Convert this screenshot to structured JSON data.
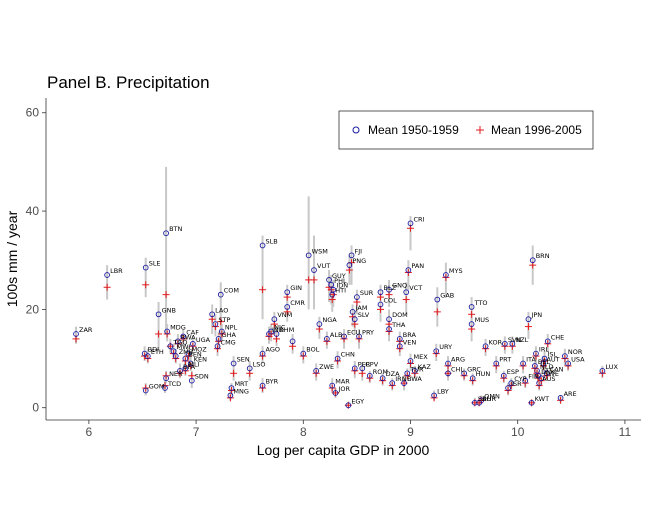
{
  "chart_data": {
    "type": "scatter",
    "title": "Panel B. Precipitation",
    "xlabel": "Log per capita GDP in 2000",
    "ylabel": "100s mm / year",
    "xlim": [
      5.6,
      11.15
    ],
    "ylim": [
      -2.5,
      63
    ],
    "xticks": [
      "6",
      "7",
      "8",
      "9",
      "10",
      "11"
    ],
    "yticks": [
      "0",
      "20",
      "40",
      "60"
    ],
    "grid": false,
    "legend_position": "top-right",
    "colors": {
      "mean_1950": "#1a1aa0",
      "mean_1996": "#e41a1c",
      "range": "#c8c8c8"
    },
    "legend": {
      "mean_1950": "Mean 1950-1959",
      "mean_1996": "Mean 1996-2005"
    },
    "series_names": [
      "Mean 1950-1959",
      "Mean 1996-2005"
    ],
    "points": [
      {
        "label": "ZAR",
        "x": 5.88,
        "y1": 15.0,
        "y2": 14.0,
        "lo": 13.0,
        "hi": 16.5
      },
      {
        "label": "LBR",
        "x": 6.17,
        "y1": 27.0,
        "y2": 24.5,
        "lo": 22.0,
        "hi": 29.0
      },
      {
        "label": "SLE",
        "x": 6.53,
        "y1": 28.5,
        "y2": 25.0,
        "lo": 22.5,
        "hi": 30.5
      },
      {
        "label": "BTN",
        "x": 6.72,
        "y1": 35.5,
        "y2": 23.0,
        "lo": 15.0,
        "hi": 49.0
      },
      {
        "label": "GNB",
        "x": 6.65,
        "y1": 19.0,
        "y2": 15.0,
        "lo": 12.0,
        "hi": 21.5
      },
      {
        "label": "MDG",
        "x": 6.73,
        "y1": 15.5,
        "y2": 15.0,
        "lo": 13.5,
        "hi": 17.0
      },
      {
        "label": "BDI",
        "x": 6.52,
        "y1": 11.0,
        "y2": 10.5,
        "lo": 9.5,
        "hi": 12.5
      },
      {
        "label": "ETH",
        "x": 6.55,
        "y1": 10.5,
        "y2": 10.0,
        "lo": 9.0,
        "hi": 12.0
      },
      {
        "label": "TCD",
        "x": 6.71,
        "y1": 4.0,
        "y2": 4.5,
        "lo": 3.0,
        "hi": 5.5
      },
      {
        "label": "GOM",
        "x": 6.53,
        "y1": 3.5,
        "y2": 4.0,
        "lo": 2.5,
        "hi": 5.0
      },
      {
        "label": "NER",
        "x": 6.72,
        "y1": 6.0,
        "y2": 6.5,
        "lo": 5.0,
        "hi": 7.5
      },
      {
        "label": "TGO",
        "x": 6.76,
        "y1": 12.5,
        "y2": 12.5,
        "lo": 11.0,
        "hi": 14.0
      },
      {
        "label": "MWI",
        "x": 6.79,
        "y1": 11.5,
        "y2": 11.0,
        "lo": 10.0,
        "hi": 13.0
      },
      {
        "label": "ZMB",
        "x": 6.81,
        "y1": 10.5,
        "y2": 10.0,
        "lo": 9.0,
        "hi": 12.0
      },
      {
        "label": "CAF",
        "x": 6.88,
        "y1": 14.5,
        "y2": 14.0,
        "lo": 12.5,
        "hi": 16.0
      },
      {
        "label": "RWA",
        "x": 6.83,
        "y1": 13.5,
        "y2": 13.0,
        "lo": 12.0,
        "hi": 15.0
      },
      {
        "label": "UGA",
        "x": 6.97,
        "y1": 13.0,
        "y2": 12.5,
        "lo": 11.5,
        "hi": 14.5
      },
      {
        "label": "BEN",
        "x": 6.9,
        "y1": 10.0,
        "y2": 9.5,
        "lo": 8.5,
        "hi": 11.5
      },
      {
        "label": "MLI",
        "x": 6.9,
        "y1": 8.0,
        "y2": 7.5,
        "lo": 6.5,
        "hi": 9.5
      },
      {
        "label": "BFA",
        "x": 6.85,
        "y1": 7.5,
        "y2": 7.0,
        "lo": 6.0,
        "hi": 9.0
      },
      {
        "label": "SDN",
        "x": 6.96,
        "y1": 5.5,
        "y2": 6.5,
        "lo": 4.0,
        "hi": 7.5
      },
      {
        "label": "KEN",
        "x": 6.95,
        "y1": 9.0,
        "y2": 8.5,
        "lo": 7.5,
        "hi": 10.5
      },
      {
        "label": "MOZ",
        "x": 6.93,
        "y1": 11.0,
        "y2": 10.5,
        "lo": 9.5,
        "hi": 12.5
      },
      {
        "label": "LAO",
        "x": 7.15,
        "y1": 19.0,
        "y2": 18.0,
        "lo": 15.0,
        "hi": 21.0
      },
      {
        "label": "STP",
        "x": 7.18,
        "y1": 17.0,
        "y2": 16.5,
        "lo": 14.5,
        "hi": 19.0
      },
      {
        "label": "NPL",
        "x": 7.24,
        "y1": 15.5,
        "y2": 15.0,
        "lo": 13.5,
        "hi": 17.0
      },
      {
        "label": "GHA",
        "x": 7.21,
        "y1": 14.0,
        "y2": 13.5,
        "lo": 12.0,
        "hi": 15.5
      },
      {
        "label": "CMG",
        "x": 7.2,
        "y1": 12.5,
        "y2": 12.0,
        "lo": 10.5,
        "hi": 14.0
      },
      {
        "label": "COM",
        "x": 7.23,
        "y1": 23.0,
        "y2": 17.5,
        "lo": 13.5,
        "hi": 25.5
      },
      {
        "label": "SEN",
        "x": 7.35,
        "y1": 9.0,
        "y2": 7.0,
        "lo": 5.5,
        "hi": 10.5
      },
      {
        "label": "MRT",
        "x": 7.33,
        "y1": 4.0,
        "y2": 3.5,
        "lo": 2.5,
        "hi": 5.0
      },
      {
        "label": "MNG",
        "x": 7.32,
        "y1": 2.5,
        "y2": 2.0,
        "lo": 1.5,
        "hi": 3.5
      },
      {
        "label": "LSO",
        "x": 7.5,
        "y1": 8.0,
        "y2": 7.0,
        "lo": 5.5,
        "hi": 9.5
      },
      {
        "label": "SLB",
        "x": 7.62,
        "y1": 33.0,
        "y2": 24.0,
        "lo": 18.0,
        "hi": 35.0
      },
      {
        "label": "AGO",
        "x": 7.62,
        "y1": 11.0,
        "y2": 10.5,
        "lo": 9.0,
        "hi": 12.5
      },
      {
        "label": "BYR",
        "x": 7.62,
        "y1": 4.5,
        "y2": 4.0,
        "lo": 3.0,
        "hi": 6.0
      },
      {
        "label": "VNM",
        "x": 7.73,
        "y1": 18.0,
        "y2": 17.0,
        "lo": 15.0,
        "hi": 19.5
      },
      {
        "label": "IND",
        "x": 7.68,
        "y1": 15.0,
        "y2": 14.5,
        "lo": 13.0,
        "hi": 16.5
      },
      {
        "label": "NIC",
        "x": 7.7,
        "y1": 15.5,
        "y2": 15.0,
        "lo": 13.5,
        "hi": 17.0
      },
      {
        "label": "KHM",
        "x": 7.75,
        "y1": 15.0,
        "y2": 14.0,
        "lo": 12.5,
        "hi": 16.5
      },
      {
        "label": "CMR",
        "x": 7.85,
        "y1": 20.5,
        "y2": 19.5,
        "lo": 17.5,
        "hi": 22.0
      },
      {
        "label": "GIN",
        "x": 7.85,
        "y1": 23.5,
        "y2": 22.5,
        "lo": 20.0,
        "hi": 25.0
      },
      {
        "label": "IND2",
        "x": 7.9,
        "y1": 13.5,
        "y2": 12.5,
        "lo": 11.0,
        "hi": 15.0
      },
      {
        "label": "BOL",
        "x": 8.0,
        "y1": 11.0,
        "y2": 10.5,
        "lo": 9.0,
        "hi": 12.5
      },
      {
        "label": "WSM",
        "x": 8.05,
        "y1": 31.0,
        "y2": 26.0,
        "lo": 20.0,
        "hi": 43.0
      },
      {
        "label": "VUT",
        "x": 8.1,
        "y1": 28.0,
        "y2": 26.0,
        "lo": 20.0,
        "hi": 35.0
      },
      {
        "label": "NGA",
        "x": 8.15,
        "y1": 17.0,
        "y2": 16.0,
        "lo": 14.0,
        "hi": 18.5
      },
      {
        "label": "ALB",
        "x": 8.22,
        "y1": 14.0,
        "y2": 13.5,
        "lo": 12.0,
        "hi": 15.5
      },
      {
        "label": "ZWE",
        "x": 8.12,
        "y1": 7.5,
        "y2": 7.0,
        "lo": 5.5,
        "hi": 9.0
      },
      {
        "label": "GUY",
        "x": 8.24,
        "y1": 26.0,
        "y2": 24.5,
        "lo": 21.5,
        "hi": 28.0
      },
      {
        "label": "PHL",
        "x": 8.26,
        "y1": 25.0,
        "y2": 24.0,
        "lo": 21.0,
        "hi": 27.0
      },
      {
        "label": "IDN",
        "x": 8.28,
        "y1": 24.0,
        "y2": 23.0,
        "lo": 20.5,
        "hi": 26.0
      },
      {
        "label": "HTI",
        "x": 8.27,
        "y1": 23.0,
        "y2": 22.0,
        "lo": 19.5,
        "hi": 25.0
      },
      {
        "label": "MAR",
        "x": 8.27,
        "y1": 4.5,
        "y2": 4.0,
        "lo": 3.0,
        "hi": 6.0
      },
      {
        "label": "JOR",
        "x": 8.3,
        "y1": 3.0,
        "y2": 3.0,
        "lo": 2.0,
        "hi": 4.0
      },
      {
        "label": "EGY",
        "x": 8.42,
        "y1": 0.5,
        "y2": 0.5,
        "lo": 0.2,
        "hi": 1.0
      },
      {
        "label": "FJI",
        "x": 8.45,
        "y1": 31.0,
        "y2": 29.5,
        "lo": 25.0,
        "hi": 33.0
      },
      {
        "label": "PNG",
        "x": 8.43,
        "y1": 29.0,
        "y2": 28.0,
        "lo": 25.0,
        "hi": 31.0
      },
      {
        "label": "CHN",
        "x": 8.32,
        "y1": 10.0,
        "y2": 9.5,
        "lo": 8.0,
        "hi": 11.5
      },
      {
        "label": "ECU",
        "x": 8.38,
        "y1": 14.5,
        "y2": 14.0,
        "lo": 12.0,
        "hi": 16.0
      },
      {
        "label": "SUR",
        "x": 8.5,
        "y1": 22.5,
        "y2": 21.5,
        "lo": 19.0,
        "hi": 24.0
      },
      {
        "label": "JAM",
        "x": 8.46,
        "y1": 19.5,
        "y2": 18.5,
        "lo": 16.5,
        "hi": 21.0
      },
      {
        "label": "SLV",
        "x": 8.48,
        "y1": 18.0,
        "y2": 17.0,
        "lo": 15.0,
        "hi": 19.5
      },
      {
        "label": "PRY",
        "x": 8.52,
        "y1": 14.5,
        "y2": 14.0,
        "lo": 12.0,
        "hi": 16.0
      },
      {
        "label": "PER",
        "x": 8.48,
        "y1": 8.0,
        "y2": 7.5,
        "lo": 6.0,
        "hi": 9.5
      },
      {
        "label": "CPV",
        "x": 8.55,
        "y1": 8.0,
        "y2": 7.0,
        "lo": 5.5,
        "hi": 9.0
      },
      {
        "label": "ROM",
        "x": 8.62,
        "y1": 6.5,
        "y2": 6.0,
        "lo": 5.0,
        "hi": 7.5
      },
      {
        "label": "BLZ",
        "x": 8.72,
        "y1": 23.5,
        "y2": 22.5,
        "lo": 20.0,
        "hi": 25.0
      },
      {
        "label": "GNQ",
        "x": 8.8,
        "y1": 24.0,
        "y2": 23.0,
        "lo": 20.5,
        "hi": 26.0
      },
      {
        "label": "VCT",
        "x": 8.96,
        "y1": 23.5,
        "y2": 22.0,
        "lo": 19.0,
        "hi": 25.5
      },
      {
        "label": "COL",
        "x": 8.72,
        "y1": 21.0,
        "y2": 20.0,
        "lo": 17.5,
        "hi": 22.5
      },
      {
        "label": "CRI",
        "x": 9.0,
        "y1": 37.5,
        "y2": 36.5,
        "lo": 32.0,
        "hi": 39.0
      },
      {
        "label": "PAN",
        "x": 8.98,
        "y1": 28.0,
        "y2": 27.5,
        "lo": 24.0,
        "hi": 30.0
      },
      {
        "label": "DOM",
        "x": 8.8,
        "y1": 18.0,
        "y2": 17.0,
        "lo": 15.0,
        "hi": 20.0
      },
      {
        "label": "THA",
        "x": 8.8,
        "y1": 16.0,
        "y2": 15.5,
        "lo": 13.5,
        "hi": 17.5
      },
      {
        "label": "BRA",
        "x": 8.9,
        "y1": 14.0,
        "y2": 13.5,
        "lo": 12.0,
        "hi": 15.5
      },
      {
        "label": "VEN",
        "x": 8.9,
        "y1": 12.5,
        "y2": 12.0,
        "lo": 10.5,
        "hi": 14.0
      },
      {
        "label": "MEX",
        "x": 9.0,
        "y1": 9.5,
        "y2": 9.0,
        "lo": 7.5,
        "hi": 11.0
      },
      {
        "label": "BWA",
        "x": 8.94,
        "y1": 5.0,
        "y2": 5.0,
        "lo": 3.5,
        "hi": 6.5
      },
      {
        "label": "IRN",
        "x": 8.83,
        "y1": 5.0,
        "y2": 4.5,
        "lo": 3.5,
        "hi": 6.0
      },
      {
        "label": "DZA",
        "x": 8.74,
        "y1": 6.0,
        "y2": 5.5,
        "lo": 4.5,
        "hi": 7.0
      },
      {
        "label": "TUR",
        "x": 8.97,
        "y1": 7.0,
        "y2": 6.5,
        "lo": 5.5,
        "hi": 8.0
      },
      {
        "label": "KAZ",
        "x": 9.04,
        "y1": 7.5,
        "y2": 7.0,
        "lo": 6.0,
        "hi": 8.5
      },
      {
        "label": "MYS",
        "x": 9.33,
        "y1": 27.0,
        "y2": 26.5,
        "lo": 22.5,
        "hi": 29.5
      },
      {
        "label": "GAB",
        "x": 9.25,
        "y1": 22.0,
        "y2": 19.5,
        "lo": 16.5,
        "hi": 24.5
      },
      {
        "label": "URY",
        "x": 9.24,
        "y1": 11.5,
        "y2": 11.0,
        "lo": 9.5,
        "hi": 13.0
      },
      {
        "label": "ARG",
        "x": 9.35,
        "y1": 9.0,
        "y2": 8.5,
        "lo": 7.0,
        "hi": 10.5
      },
      {
        "label": "CHL",
        "x": 9.35,
        "y1": 7.0,
        "y2": 7.0,
        "lo": 5.5,
        "hi": 8.5
      },
      {
        "label": "LBY",
        "x": 9.22,
        "y1": 2.5,
        "y2": 2.0,
        "lo": 1.5,
        "hi": 3.5
      },
      {
        "label": "TTO",
        "x": 9.57,
        "y1": 20.5,
        "y2": 19.0,
        "lo": 16.0,
        "hi": 22.5
      },
      {
        "label": "MUS",
        "x": 9.57,
        "y1": 17.0,
        "y2": 16.0,
        "lo": 13.5,
        "hi": 18.5
      },
      {
        "label": "HUN",
        "x": 9.58,
        "y1": 6.0,
        "y2": 5.5,
        "lo": 4.5,
        "hi": 7.0
      },
      {
        "label": "GRC",
        "x": 9.5,
        "y1": 7.0,
        "y2": 6.5,
        "lo": 5.5,
        "hi": 8.0
      },
      {
        "label": "SAU",
        "x": 9.6,
        "y1": 1.0,
        "y2": 1.0,
        "lo": 0.5,
        "hi": 2.0
      },
      {
        "label": "OMN",
        "x": 9.66,
        "y1": 1.5,
        "y2": 1.5,
        "lo": 0.8,
        "hi": 2.5
      },
      {
        "label": "KOR",
        "x": 9.7,
        "y1": 12.5,
        "y2": 12.0,
        "lo": 10.5,
        "hi": 14.0
      },
      {
        "label": "BHR",
        "x": 9.64,
        "y1": 1.0,
        "y2": 1.0,
        "lo": 0.5,
        "hi": 1.5
      },
      {
        "label": "PRT",
        "x": 9.8,
        "y1": 9.0,
        "y2": 8.5,
        "lo": 7.0,
        "hi": 10.5
      },
      {
        "label": "SVN",
        "x": 9.88,
        "y1": 13.0,
        "y2": 12.5,
        "lo": 11.0,
        "hi": 14.5
      },
      {
        "label": "ESP",
        "x": 9.87,
        "y1": 6.5,
        "y2": 6.0,
        "lo": 5.0,
        "hi": 7.5
      },
      {
        "label": "CYP",
        "x": 9.94,
        "y1": 5.0,
        "y2": 4.5,
        "lo": 3.5,
        "hi": 6.0
      },
      {
        "label": "ISR",
        "x": 9.91,
        "y1": 4.0,
        "y2": 3.5,
        "lo": 2.5,
        "hi": 5.0
      },
      {
        "label": "NZL",
        "x": 9.95,
        "y1": 13.0,
        "y2": 12.5,
        "lo": 11.0,
        "hi": 14.5
      },
      {
        "label": "ITA",
        "x": 10.05,
        "y1": 9.0,
        "y2": 8.5,
        "lo": 7.0,
        "hi": 10.5
      },
      {
        "label": "FIN",
        "x": 10.07,
        "y1": 5.5,
        "y2": 5.0,
        "lo": 4.0,
        "hi": 6.5
      },
      {
        "label": "KWT",
        "x": 10.13,
        "y1": 1.0,
        "y2": 1.0,
        "lo": 0.5,
        "hi": 1.5
      },
      {
        "label": "JPN",
        "x": 10.1,
        "y1": 18.0,
        "y2": 16.5,
        "lo": 14.0,
        "hi": 19.5
      },
      {
        "label": "BRN",
        "x": 10.14,
        "y1": 30.0,
        "y2": 29.0,
        "lo": 25.0,
        "hi": 33.0
      },
      {
        "label": "IRL",
        "x": 10.17,
        "y1": 11.0,
        "y2": 10.5,
        "lo": 9.0,
        "hi": 12.5
      },
      {
        "label": "AUS",
        "x": 10.2,
        "y1": 5.0,
        "y2": 4.5,
        "lo": 3.5,
        "hi": 6.0
      },
      {
        "label": "NLD",
        "x": 10.18,
        "y1": 7.5,
        "y2": 7.0,
        "lo": 6.0,
        "hi": 8.5
      },
      {
        "label": "BEL",
        "x": 10.16,
        "y1": 8.5,
        "y2": 8.0,
        "lo": 7.0,
        "hi": 9.5
      },
      {
        "label": "DNK",
        "x": 10.19,
        "y1": 6.5,
        "y2": 6.0,
        "lo": 5.0,
        "hi": 7.5
      },
      {
        "label": "SWE",
        "x": 10.22,
        "y1": 6.0,
        "y2": 5.5,
        "lo": 4.5,
        "hi": 7.0
      },
      {
        "label": "ISL",
        "x": 10.25,
        "y1": 10.0,
        "y2": 9.5,
        "lo": 8.0,
        "hi": 11.5
      },
      {
        "label": "AUT",
        "x": 10.24,
        "y1": 9.0,
        "y2": 8.5,
        "lo": 7.0,
        "hi": 10.5
      },
      {
        "label": "CAN",
        "x": 10.27,
        "y1": 7.0,
        "y2": 6.5,
        "lo": 5.5,
        "hi": 8.0
      },
      {
        "label": "CHE",
        "x": 10.28,
        "y1": 13.5,
        "y2": 13.0,
        "lo": 11.5,
        "hi": 15.0
      },
      {
        "label": "NOR",
        "x": 10.44,
        "y1": 10.5,
        "y2": 10.0,
        "lo": 8.5,
        "hi": 12.0
      },
      {
        "label": "USA",
        "x": 10.47,
        "y1": 9.0,
        "y2": 8.5,
        "lo": 7.5,
        "hi": 10.0
      },
      {
        "label": "ARE",
        "x": 10.4,
        "y1": 2.0,
        "y2": 1.5,
        "lo": 1.0,
        "hi": 2.5
      },
      {
        "label": "LUX",
        "x": 10.79,
        "y1": 7.5,
        "y2": 7.0,
        "lo": 6.0,
        "hi": 8.5
      }
    ]
  }
}
